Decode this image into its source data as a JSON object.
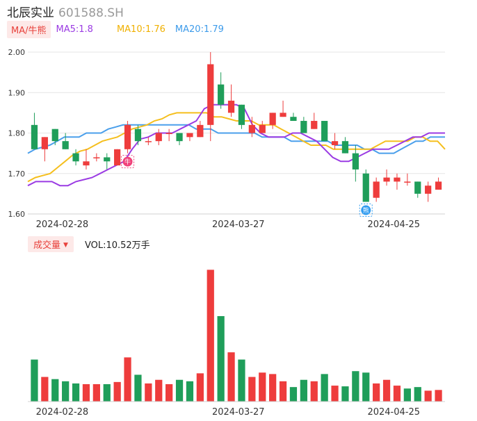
{
  "header": {
    "name": "北辰实业",
    "code": "601588.SH"
  },
  "ma_bar": {
    "tag": "MA/牛熊",
    "ma5": "MA5:1.8",
    "ma10": "MA10:1.76",
    "ma20": "MA20:1.79"
  },
  "volume_bar": {
    "tag": "成交量",
    "arrow": "▼",
    "value": "VOL:10.52万手"
  },
  "colors": {
    "up": "#ee3c3c",
    "down": "#1f9e5a",
    "ma5": "#9b3be3",
    "ma10": "#f5bf1e",
    "ma20": "#4a9feb",
    "grid": "#e6e6e6"
  },
  "chart_data": [
    {
      "type": "candlestick",
      "y_ticks": [
        "2.00",
        "1.90",
        "1.80",
        "1.70",
        "1.60"
      ],
      "y_tick_values": [
        2.0,
        1.9,
        1.8,
        1.7,
        1.6
      ],
      "ylim": [
        1.6,
        2.0
      ],
      "x_tick_labels": [
        {
          "index": 0,
          "label": "2024-02-28"
        },
        {
          "index": 17,
          "label": "2024-03-27"
        },
        {
          "index": 32,
          "label": "2024-04-25"
        }
      ],
      "candles": [
        {
          "o": 1.82,
          "h": 1.85,
          "l": 1.76,
          "c": 1.76
        },
        {
          "o": 1.76,
          "h": 1.79,
          "l": 1.73,
          "c": 1.79
        },
        {
          "o": 1.81,
          "h": 1.81,
          "l": 1.77,
          "c": 1.78
        },
        {
          "o": 1.78,
          "h": 1.8,
          "l": 1.76,
          "c": 1.76
        },
        {
          "o": 1.75,
          "h": 1.76,
          "l": 1.72,
          "c": 1.73
        },
        {
          "o": 1.72,
          "h": 1.76,
          "l": 1.71,
          "c": 1.73
        },
        {
          "o": 1.74,
          "h": 1.75,
          "l": 1.73,
          "c": 1.74
        },
        {
          "o": 1.74,
          "h": 1.75,
          "l": 1.71,
          "c": 1.73
        },
        {
          "o": 1.72,
          "h": 1.76,
          "l": 1.72,
          "c": 1.76
        },
        {
          "o": 1.76,
          "h": 1.83,
          "l": 1.75,
          "c": 1.82
        },
        {
          "o": 1.81,
          "h": 1.82,
          "l": 1.77,
          "c": 1.78
        },
        {
          "o": 1.78,
          "h": 1.79,
          "l": 1.77,
          "c": 1.78
        },
        {
          "o": 1.78,
          "h": 1.81,
          "l": 1.77,
          "c": 1.8
        },
        {
          "o": 1.8,
          "h": 1.81,
          "l": 1.78,
          "c": 1.8
        },
        {
          "o": 1.8,
          "h": 1.8,
          "l": 1.77,
          "c": 1.78
        },
        {
          "o": 1.79,
          "h": 1.8,
          "l": 1.78,
          "c": 1.8
        },
        {
          "o": 1.79,
          "h": 1.83,
          "l": 1.79,
          "c": 1.82
        },
        {
          "o": 1.82,
          "h": 2.0,
          "l": 1.78,
          "c": 1.97
        },
        {
          "o": 1.92,
          "h": 1.95,
          "l": 1.86,
          "c": 1.87
        },
        {
          "o": 1.85,
          "h": 1.92,
          "l": 1.84,
          "c": 1.88
        },
        {
          "o": 1.87,
          "h": 1.87,
          "l": 1.81,
          "c": 1.82
        },
        {
          "o": 1.8,
          "h": 1.84,
          "l": 1.79,
          "c": 1.82
        },
        {
          "o": 1.8,
          "h": 1.83,
          "l": 1.8,
          "c": 1.82
        },
        {
          "o": 1.82,
          "h": 1.85,
          "l": 1.81,
          "c": 1.85
        },
        {
          "o": 1.84,
          "h": 1.88,
          "l": 1.84,
          "c": 1.85
        },
        {
          "o": 1.84,
          "h": 1.85,
          "l": 1.83,
          "c": 1.83
        },
        {
          "o": 1.83,
          "h": 1.84,
          "l": 1.8,
          "c": 1.8
        },
        {
          "o": 1.81,
          "h": 1.85,
          "l": 1.81,
          "c": 1.83
        },
        {
          "o": 1.83,
          "h": 1.83,
          "l": 1.78,
          "c": 1.78
        },
        {
          "o": 1.77,
          "h": 1.8,
          "l": 1.76,
          "c": 1.78
        },
        {
          "o": 1.78,
          "h": 1.79,
          "l": 1.75,
          "c": 1.75
        },
        {
          "o": 1.75,
          "h": 1.77,
          "l": 1.68,
          "c": 1.71
        },
        {
          "o": 1.7,
          "h": 1.71,
          "l": 1.63,
          "c": 1.63
        },
        {
          "o": 1.64,
          "h": 1.69,
          "l": 1.63,
          "c": 1.68
        },
        {
          "o": 1.68,
          "h": 1.71,
          "l": 1.67,
          "c": 1.69
        },
        {
          "o": 1.68,
          "h": 1.7,
          "l": 1.66,
          "c": 1.69
        },
        {
          "o": 1.68,
          "h": 1.7,
          "l": 1.67,
          "c": 1.68
        },
        {
          "o": 1.68,
          "h": 1.68,
          "l": 1.64,
          "c": 1.65
        },
        {
          "o": 1.65,
          "h": 1.68,
          "l": 1.63,
          "c": 1.67
        },
        {
          "o": 1.66,
          "h": 1.69,
          "l": 1.66,
          "c": 1.68
        }
      ],
      "ma5": [
        1.67,
        1.68,
        1.68,
        1.68,
        1.67,
        1.67,
        1.68,
        1.685,
        1.69,
        1.7,
        1.71,
        1.72,
        1.73,
        1.76,
        1.785,
        1.79,
        1.8,
        1.8,
        1.8,
        1.81,
        1.82,
        1.83,
        1.86,
        1.87,
        1.87,
        1.87,
        1.87,
        1.86,
        1.82,
        1.8,
        1.79,
        1.79,
        1.79,
        1.8,
        1.8,
        1.79,
        1.78,
        1.76,
        1.74,
        1.73,
        1.73,
        1.74,
        1.75,
        1.76,
        1.76,
        1.76,
        1.77,
        1.78,
        1.79,
        1.79,
        1.8,
        1.8,
        1.8
      ],
      "ma10": [
        1.68,
        1.69,
        1.695,
        1.7,
        1.715,
        1.73,
        1.745,
        1.755,
        1.76,
        1.77,
        1.78,
        1.785,
        1.79,
        1.8,
        1.81,
        1.815,
        1.82,
        1.83,
        1.835,
        1.845,
        1.85,
        1.85,
        1.85,
        1.85,
        1.85,
        1.84,
        1.84,
        1.835,
        1.83,
        1.83,
        1.83,
        1.82,
        1.82,
        1.82,
        1.81,
        1.8,
        1.79,
        1.78,
        1.77,
        1.77,
        1.77,
        1.76,
        1.76,
        1.76,
        1.76,
        1.76,
        1.76,
        1.77,
        1.78,
        1.78,
        1.78,
        1.78,
        1.79,
        1.79,
        1.78,
        1.78,
        1.76
      ],
      "ma20": [
        1.75,
        1.76,
        1.765,
        1.77,
        1.78,
        1.79,
        1.79,
        1.79,
        1.8,
        1.8,
        1.8,
        1.81,
        1.815,
        1.82,
        1.82,
        1.82,
        1.82,
        1.82,
        1.82,
        1.82,
        1.82,
        1.82,
        1.82,
        1.81,
        1.81,
        1.81,
        1.8,
        1.8,
        1.8,
        1.8,
        1.8,
        1.8,
        1.79,
        1.79,
        1.79,
        1.79,
        1.78,
        1.78,
        1.78,
        1.78,
        1.78,
        1.78,
        1.77,
        1.77,
        1.77,
        1.77,
        1.76,
        1.76,
        1.75,
        1.75,
        1.75,
        1.76,
        1.77,
        1.78,
        1.78,
        1.79,
        1.79,
        1.79
      ],
      "markers": [
        {
          "index": 9,
          "label": "牛",
          "type": "bull"
        },
        {
          "index": 32,
          "label": "熊",
          "type": "bear"
        }
      ]
    },
    {
      "type": "bar",
      "title": "成交量",
      "x_tick_labels": [
        {
          "index": 0,
          "label": "2024-02-28"
        },
        {
          "index": 17,
          "label": "2024-03-27"
        },
        {
          "index": 32,
          "label": "2024-04-25"
        }
      ],
      "ylim": [
        0,
        190
      ],
      "values": [
        58,
        34,
        31,
        28,
        25,
        24,
        24,
        24,
        27,
        61,
        37,
        25,
        30,
        24,
        30,
        28,
        39,
        182,
        118,
        68,
        58,
        34,
        40,
        38,
        28,
        20,
        30,
        28,
        38,
        22,
        21,
        42,
        40,
        25,
        30,
        22,
        18,
        20,
        15,
        16
      ],
      "up": [
        false,
        true,
        false,
        false,
        false,
        true,
        true,
        false,
        true,
        true,
        false,
        true,
        true,
        true,
        false,
        false,
        true,
        true,
        false,
        true,
        false,
        true,
        true,
        true,
        true,
        false,
        false,
        true,
        false,
        true,
        false,
        false,
        false,
        true,
        true,
        true,
        false,
        false,
        true,
        true
      ]
    }
  ]
}
